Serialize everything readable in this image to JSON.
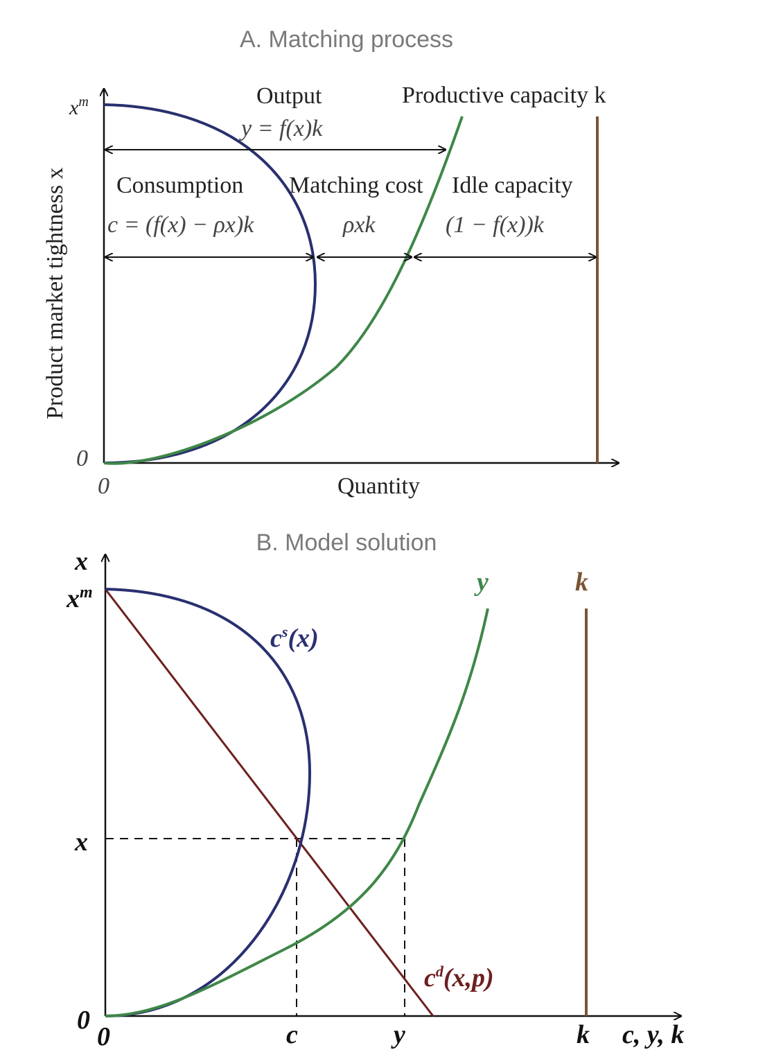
{
  "panel_a": {
    "title": "A. Matching process",
    "y_axis_label": "Product market tightness x",
    "x_axis_label": "Quantity",
    "origin_x": "0",
    "origin_y": "0",
    "y_top_tick": "x",
    "y_top_tick_sup": "m",
    "output_label": "Output",
    "output_formula": "y = f(x)k",
    "capacity_label": "Productive capacity k",
    "consumption_label": "Consumption",
    "consumption_formula": "c = (f(x) − ρx)k",
    "matching_cost_label": "Matching cost",
    "matching_cost_formula": "ρxk",
    "idle_label": "Idle capacity",
    "idle_formula": "(1 − f(x))k"
  },
  "panel_b": {
    "title": "B. Model solution",
    "y_axis_label": "x",
    "y_top_tick": "x",
    "y_top_tick_sup": "m",
    "y_mid_tick": "x",
    "origin_y": "0",
    "origin_x": "0",
    "x_ticks": [
      "c",
      "y",
      "k"
    ],
    "x_axis_label": "c, y, k",
    "cs_label": "c",
    "cs_sup": "s",
    "cs_arg": "(x)",
    "cd_label": "c",
    "cd_sup": "d",
    "cd_arg": "(x,p)",
    "y_curve_label": "y",
    "k_line_label": "k"
  },
  "colors": {
    "consumption_curve": "#29306f",
    "output_curve": "#3f8748",
    "capacity_line": "#7b5433",
    "demand_line": "#6e1f1f",
    "axis": "#111111",
    "title": "#7a7a7a"
  }
}
